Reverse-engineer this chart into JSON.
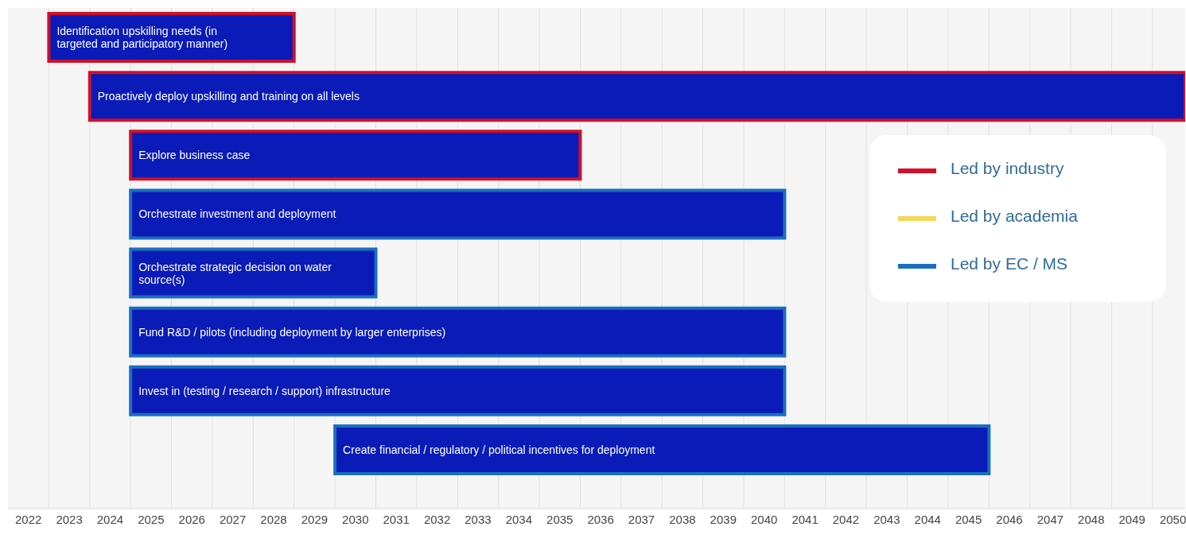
{
  "chart_data": {
    "type": "bar",
    "orientation": "horizontal",
    "categories": [
      "Identification upskilling needs (in targeted and participatory manner)",
      "Proactively deploy upskilling and training on all levels",
      "Explore business case",
      "Orchestrate investment and deployment",
      "Orchestrate strategic decision on water source(s)",
      "Fund R&D / pilots (including deployment by larger enterprises)",
      "Invest in (testing / research / support) infrastructure",
      "Create financial / regulatory / political incentives for deployment"
    ],
    "series": [
      {
        "name": "Led by industry",
        "color": "#d0102a",
        "colors": [
          "#0a1bb8",
          "#0a1bb8",
          "#0a1bb8",
          null,
          null,
          null,
          null,
          null
        ],
        "base": [
          2023,
          2024,
          2025,
          null,
          null,
          null,
          null,
          null
        ],
        "values": [
          6,
          26.8,
          11,
          null,
          null,
          null,
          null,
          null
        ]
      },
      {
        "name": "Led by academia",
        "color": "#f5d55a",
        "values": [
          null,
          null,
          null,
          null,
          null,
          null,
          null,
          null
        ]
      },
      {
        "name": "Led by EC / MS",
        "color": "#1a6fc0",
        "colors": [
          null,
          null,
          null,
          "#0a1bb8",
          "#0a1bb8",
          "#0a1bb8",
          "#0a1bb8",
          "#0a1bb8"
        ],
        "base": [
          null,
          null,
          null,
          2025,
          2025,
          2025,
          2025,
          2030
        ],
        "values": [
          null,
          null,
          null,
          16,
          6,
          16,
          16,
          16
        ]
      }
    ],
    "xlim": [
      2022,
      2050.8
    ],
    "xticks": [
      {
        "value": 2022.5,
        "label": "2022"
      },
      {
        "value": 2023.5,
        "label": "2023"
      },
      {
        "value": 2024.5,
        "label": "2024"
      },
      {
        "value": 2025.5,
        "label": "2025"
      },
      {
        "value": 2026.5,
        "label": "2026"
      },
      {
        "value": 2027.5,
        "label": "2027"
      },
      {
        "value": 2028.5,
        "label": "2028"
      },
      {
        "value": 2029.5,
        "label": "2029"
      },
      {
        "value": 2030.5,
        "label": "2030"
      },
      {
        "value": 2031.5,
        "label": "2031"
      },
      {
        "value": 2032.5,
        "label": "2032"
      },
      {
        "value": 2033.5,
        "label": "2033"
      },
      {
        "value": 2034.5,
        "label": "2034"
      },
      {
        "value": 2035.5,
        "label": "2035"
      },
      {
        "value": 2036.5,
        "label": "2036"
      },
      {
        "value": 2037.5,
        "label": "2037"
      },
      {
        "value": 2038.5,
        "label": "2038"
      },
      {
        "value": 2039.5,
        "label": "2039"
      },
      {
        "value": 2040.5,
        "label": "2040"
      },
      {
        "value": 2041.5,
        "label": "2041"
      },
      {
        "value": 2042.5,
        "label": "2042"
      },
      {
        "value": 2043.5,
        "label": "2043"
      },
      {
        "value": 2044.5,
        "label": "2044"
      },
      {
        "value": 2045.5,
        "label": "2045"
      },
      {
        "value": 2046.5,
        "label": "2046"
      },
      {
        "value": 2047.5,
        "label": "2047"
      },
      {
        "value": 2048.5,
        "label": "2048"
      },
      {
        "value": 2049.5,
        "label": "2049"
      },
      {
        "value": 2050.5,
        "label": "2050"
      },
      {
        "value": 2023,
        "label": null
      },
      {
        "value": 2024,
        "label": null
      },
      {
        "value": 2025,
        "label": null
      },
      {
        "value": 2026,
        "label": null
      },
      {
        "value": 2027,
        "label": null
      },
      {
        "value": 2028,
        "label": null
      },
      {
        "value": 2029,
        "label": null
      },
      {
        "value": 2030,
        "label": null
      },
      {
        "value": 2031,
        "label": null
      },
      {
        "value": 2032,
        "label": null
      },
      {
        "value": 2033,
        "label": null
      },
      {
        "value": 2034,
        "label": null
      },
      {
        "value": 2035,
        "label": null
      },
      {
        "value": 2036,
        "label": null
      },
      {
        "value": 2037,
        "label": null
      },
      {
        "value": 2038,
        "label": null
      },
      {
        "value": 2039,
        "label": null
      },
      {
        "value": 2040,
        "label": null
      },
      {
        "value": 2041,
        "label": null
      },
      {
        "value": 2042,
        "label": null
      },
      {
        "value": 2043,
        "label": null
      },
      {
        "value": 2044,
        "label": null
      },
      {
        "value": 2045,
        "label": null
      },
      {
        "value": 2046,
        "label": null
      },
      {
        "value": 2047,
        "label": null
      },
      {
        "value": 2048,
        "label": null
      },
      {
        "value": 2049,
        "label": null
      },
      {
        "value": 2050,
        "label": null
      }
    ],
    "grid": "x",
    "legend": "right",
    "tick_labels": "x"
  }
}
